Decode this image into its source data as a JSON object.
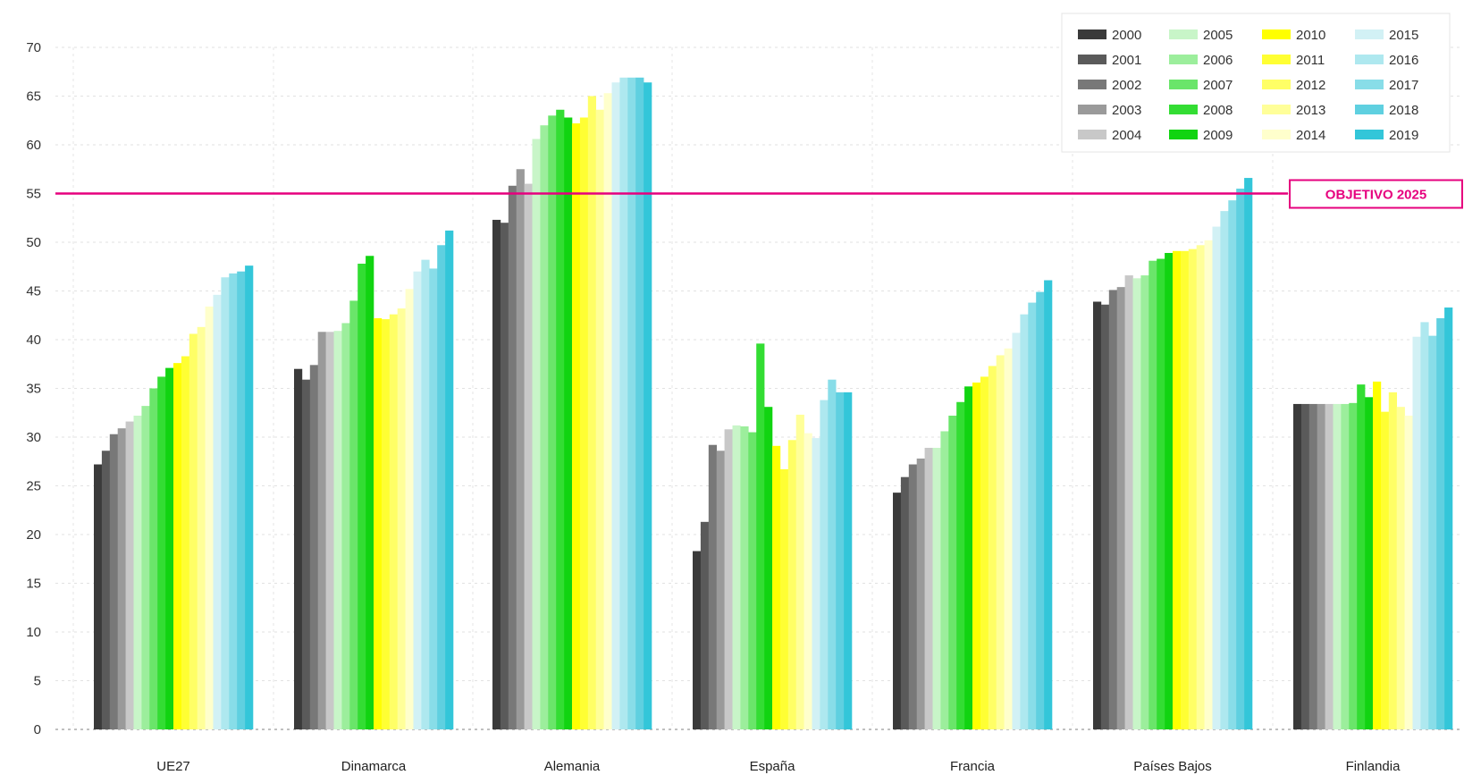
{
  "chart_data": {
    "type": "bar",
    "title": "",
    "xlabel": "",
    "ylabel": "",
    "ylim": [
      0,
      70
    ],
    "yticks": [
      0,
      5,
      10,
      15,
      20,
      25,
      30,
      35,
      40,
      45,
      50,
      55,
      60,
      65,
      70
    ],
    "grid": "dotted",
    "legend_position": "top-right",
    "categories": [
      "UE27",
      "Dinamarca",
      "Alemania",
      "España",
      "Francia",
      "Países Bajos",
      "Finlandia"
    ],
    "series": [
      {
        "name": "2000",
        "color": "#3a3a3a",
        "values": [
          27.2,
          37.0,
          52.3,
          18.3,
          24.3,
          43.9,
          33.4
        ]
      },
      {
        "name": "2001",
        "color": "#5a5a5a",
        "values": [
          28.6,
          35.9,
          52.0,
          21.3,
          25.9,
          43.6,
          33.4
        ]
      },
      {
        "name": "2002",
        "color": "#787878",
        "values": [
          30.3,
          37.4,
          55.8,
          29.2,
          27.2,
          45.1,
          33.4
        ]
      },
      {
        "name": "2003",
        "color": "#9a9a9a",
        "values": [
          30.9,
          40.8,
          57.5,
          28.6,
          27.8,
          45.4,
          33.4
        ]
      },
      {
        "name": "2004",
        "color": "#c8c8c8",
        "values": [
          31.6,
          40.8,
          56.0,
          30.8,
          28.9,
          46.6,
          33.4
        ]
      },
      {
        "name": "2005",
        "color": "#c8f5c8",
        "values": [
          32.2,
          40.9,
          60.6,
          31.2,
          28.9,
          46.3,
          33.4
        ]
      },
      {
        "name": "2006",
        "color": "#9cee9c",
        "values": [
          33.2,
          41.7,
          62.0,
          31.1,
          30.6,
          46.6,
          33.4
        ]
      },
      {
        "name": "2007",
        "color": "#6ae56a",
        "values": [
          35.0,
          44.0,
          63.0,
          30.5,
          32.2,
          48.1,
          33.5
        ]
      },
      {
        "name": "2008",
        "color": "#33dd33",
        "values": [
          36.2,
          47.8,
          63.6,
          39.6,
          33.6,
          48.3,
          35.4
        ]
      },
      {
        "name": "2009",
        "color": "#11d411",
        "values": [
          37.1,
          48.6,
          62.8,
          33.1,
          35.2,
          48.9,
          34.1
        ]
      },
      {
        "name": "2010",
        "color": "#ffff00",
        "values": [
          37.6,
          42.2,
          62.2,
          29.1,
          35.6,
          49.1,
          35.7
        ]
      },
      {
        "name": "2011",
        "color": "#ffff33",
        "values": [
          38.3,
          42.1,
          62.8,
          26.7,
          36.2,
          49.1,
          32.6
        ]
      },
      {
        "name": "2012",
        "color": "#ffff66",
        "values": [
          40.6,
          42.6,
          65.0,
          29.7,
          37.3,
          49.3,
          34.6
        ]
      },
      {
        "name": "2013",
        "color": "#ffff99",
        "values": [
          41.3,
          43.2,
          63.6,
          32.3,
          38.4,
          49.7,
          33.1
        ]
      },
      {
        "name": "2014",
        "color": "#ffffcc",
        "values": [
          43.4,
          45.2,
          65.3,
          30.4,
          39.1,
          50.2,
          32.2
        ]
      },
      {
        "name": "2015",
        "color": "#d2f1f5",
        "values": [
          44.6,
          47.0,
          66.4,
          29.9,
          40.7,
          51.6,
          40.3
        ]
      },
      {
        "name": "2016",
        "color": "#aee8ef",
        "values": [
          46.4,
          48.2,
          66.9,
          33.8,
          42.6,
          53.2,
          41.8
        ]
      },
      {
        "name": "2017",
        "color": "#88dde8",
        "values": [
          46.8,
          47.3,
          66.9,
          35.9,
          43.8,
          54.3,
          40.4
        ]
      },
      {
        "name": "2018",
        "color": "#5fd0e0",
        "values": [
          47.0,
          49.7,
          66.9,
          34.6,
          44.9,
          55.5,
          42.2
        ]
      },
      {
        "name": "2019",
        "color": "#33c6d9",
        "values": [
          47.6,
          51.2,
          66.4,
          34.6,
          46.1,
          56.6,
          43.3
        ]
      }
    ],
    "target": {
      "value": 55,
      "label": "OBJETIVO 2025",
      "color": "#e6007e"
    }
  }
}
